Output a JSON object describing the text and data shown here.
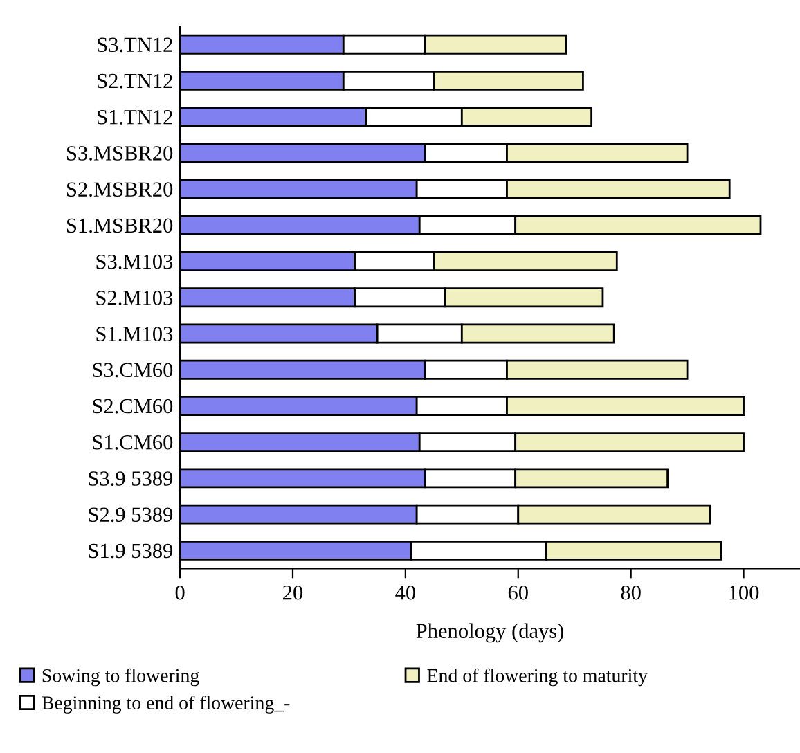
{
  "chart_data": {
    "type": "bar",
    "orientation": "horizontal",
    "stacked": true,
    "categories": [
      "S3.TN12",
      "S2.TN12",
      "S1.TN12",
      "S3.MSBR20",
      "S2.MSBR20",
      "S1.MSBR20",
      "S3.M103",
      "S2.M103",
      "S1.M103",
      "S3.CM60",
      "S2.CM60",
      "S1.CM60",
      "S3.9 5389",
      "S2.9 5389",
      "S1.9 5389"
    ],
    "series": [
      {
        "name": "Sowing to flowering",
        "color": "#8080f0",
        "values": [
          29,
          29,
          33,
          43.5,
          42,
          42.5,
          31,
          31,
          35,
          43.5,
          42,
          42.5,
          43.5,
          42,
          41
        ]
      },
      {
        "name": "Beginning to end of flowering_-",
        "color": "#ffffff",
        "values": [
          14.5,
          16,
          17,
          14.5,
          16,
          17,
          14,
          16,
          15,
          14.5,
          16,
          17,
          16,
          18,
          24
        ]
      },
      {
        "name": "End of flowering to maturity",
        "color": "#f0f0c0",
        "values": [
          25,
          26.5,
          23,
          32,
          39.5,
          43.5,
          32.5,
          28,
          27,
          32,
          42,
          40.5,
          27,
          34,
          31
        ]
      }
    ],
    "xlabel": "Phenology (days)",
    "xlim": [
      0,
      110
    ],
    "xticks": [
      0,
      20,
      40,
      60,
      80,
      100
    ],
    "grid": false,
    "legend": "bottom"
  }
}
